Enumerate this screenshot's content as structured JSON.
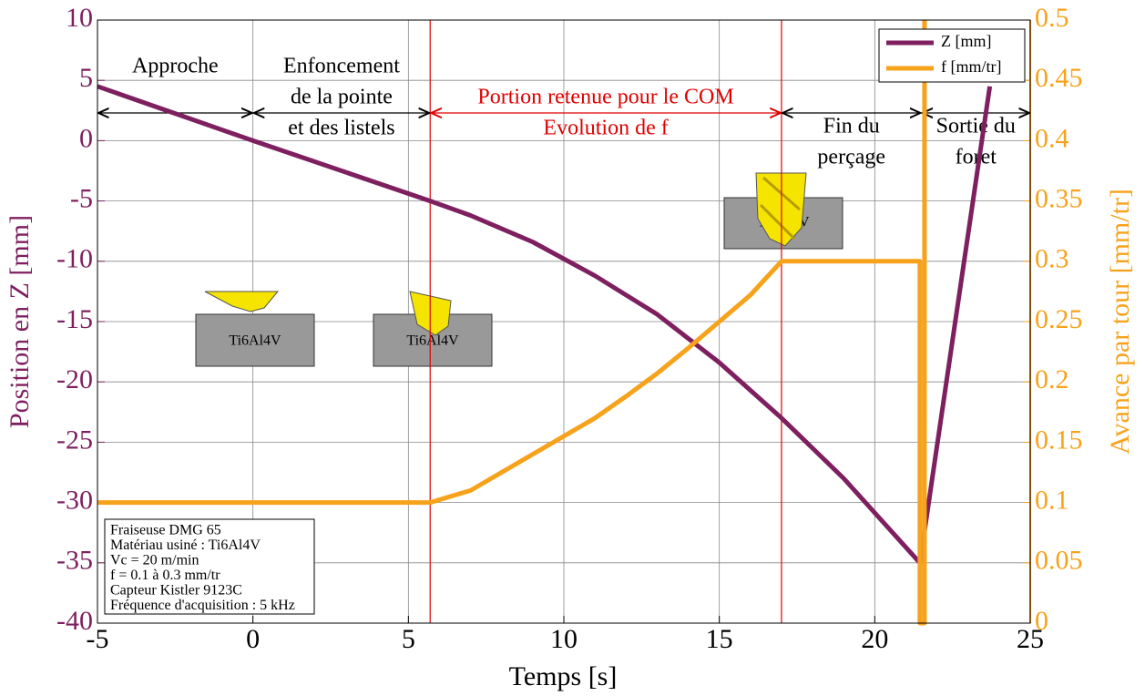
{
  "chart_data": {
    "type": "line",
    "xlabel": "Temps [s]",
    "ylabel": "Position en Z [mm]",
    "y2label": "Avance par tour [mm/tr]",
    "xlim": [
      -5,
      25
    ],
    "xticks": [
      -5,
      0,
      5,
      10,
      15,
      20,
      25
    ],
    "ylim": [
      -40,
      10
    ],
    "yticks": [
      10,
      5,
      0,
      -5,
      -10,
      -15,
      -20,
      -25,
      -30,
      -35,
      -40
    ],
    "y2lim": [
      0,
      0.5
    ],
    "y2ticks": [
      0,
      0.05,
      0.1,
      0.15,
      0.2,
      0.25,
      0.3,
      0.35,
      0.4,
      0.45,
      0.5
    ],
    "grid": true,
    "legend": "upper right",
    "series": [
      {
        "name": "Z [mm]",
        "color": "#7e1f5f",
        "axis": "y",
        "x": [
          -5,
          0,
          5.7,
          7,
          9,
          11,
          13,
          15,
          17,
          19,
          21.45,
          23.7
        ],
        "values": [
          4.5,
          0,
          -5,
          -6.2,
          -8.4,
          -11.2,
          -14.4,
          -18.4,
          -23,
          -28,
          -35,
          4.5
        ]
      },
      {
        "name": "f [mm/tr]",
        "color": "#f7a21b",
        "axis": "y2",
        "x": [
          -5,
          5.7,
          7,
          8,
          9,
          10,
          11,
          12,
          13,
          14,
          15,
          16,
          17,
          21.45,
          21.45,
          21.6,
          21.6
        ],
        "values": [
          0.1,
          0.1,
          0.11,
          0.125,
          0.14,
          0.155,
          0.17,
          0.188,
          0.207,
          0.228,
          0.25,
          0.272,
          0.3,
          0.3,
          0,
          0,
          0.5
        ]
      }
    ],
    "vlines": [
      {
        "x": 5.7,
        "color": "#e00000"
      },
      {
        "x": 17,
        "color": "#e00000"
      }
    ],
    "phases": [
      {
        "from": -5,
        "to": 0,
        "color": "#000000",
        "lines": [
          "Approche"
        ]
      },
      {
        "from": 0,
        "to": 5.7,
        "color": "#000000",
        "lines": [
          "Enfoncement",
          "de la pointe",
          "et des listels"
        ]
      },
      {
        "from": 5.7,
        "to": 17,
        "color": "#e00000",
        "lines": [
          "Portion retenue pour le COM",
          "Evolution de f"
        ]
      },
      {
        "from": 17,
        "to": 21.5,
        "color": "#000000",
        "lines": [
          "Fin du",
          "perçage"
        ]
      },
      {
        "from": 21.5,
        "to": 25,
        "color": "#000000",
        "lines": [
          "Sortie du",
          "foret"
        ]
      }
    ],
    "info_box": [
      "Fraiseuse DMG 65",
      "Matériau usiné : Ti6Al4V",
      "Vc = 20 m/min",
      "f = 0.1 à 0.3 mm/tr",
      "Capteur Kistler 9123C",
      "Fréquence d'acquisition : 5 kHz"
    ],
    "workpiece_label": "Ti6Al4V"
  }
}
